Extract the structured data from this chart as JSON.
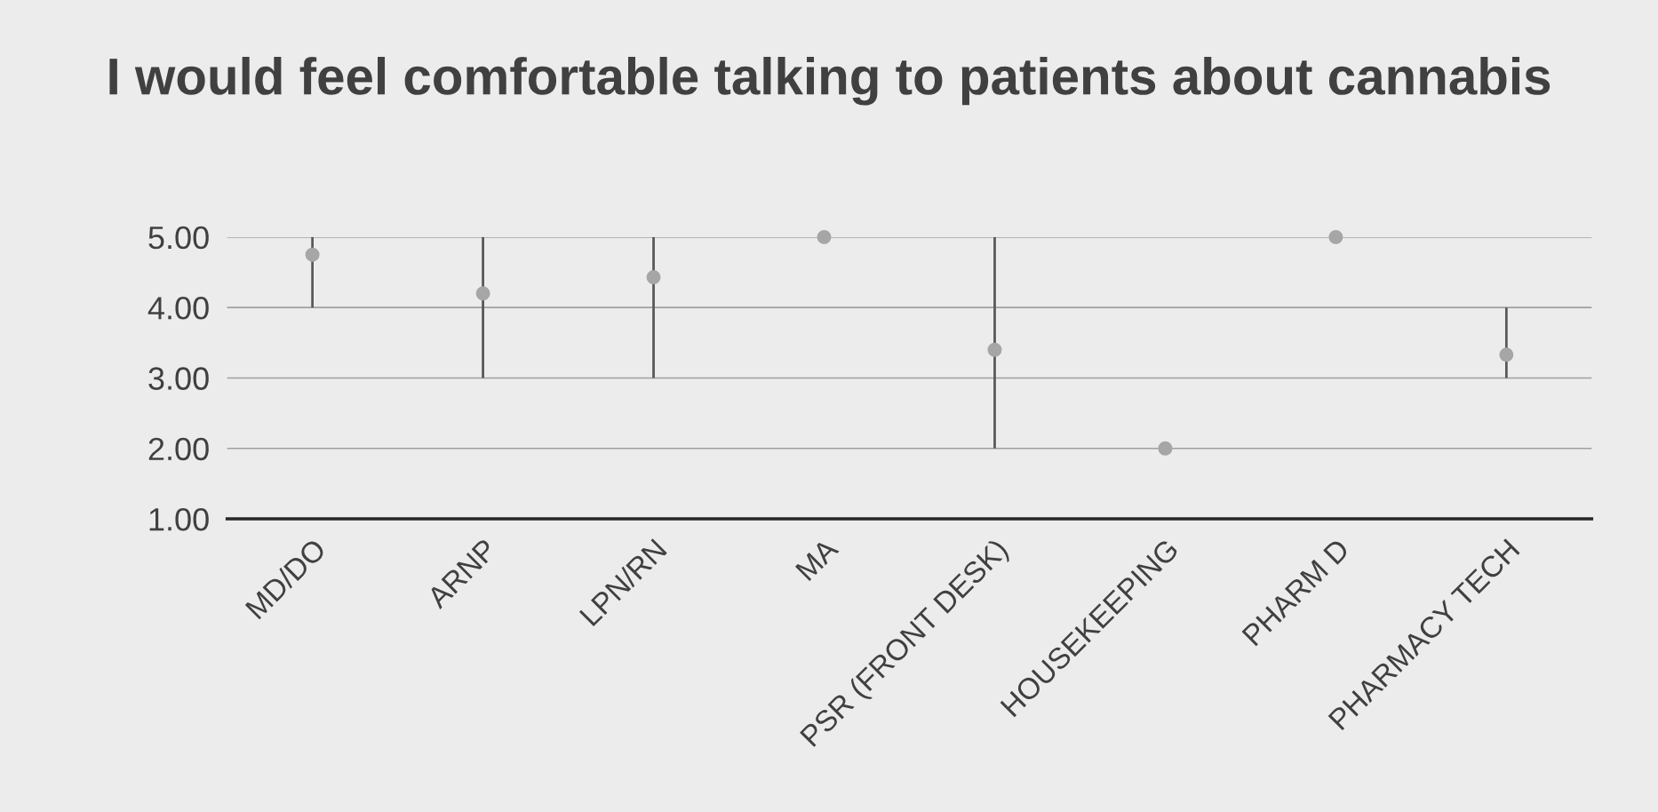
{
  "chart_data": {
    "type": "scatter",
    "title": "I would feel comfortable talking to patients about cannabis",
    "categories": [
      "MD/DO",
      "ARNP",
      "LPN/RN",
      "MA",
      "PSR (FRONT DESK)",
      "HOUSEKEEPING",
      "PHARM D",
      "PHARMACY TECH"
    ],
    "series": [
      {
        "color": "#a6a6a6",
        "values": [
          4.75,
          4.2,
          4.43,
          5,
          3.4,
          2,
          5,
          3.33
        ],
        "errors": [
          [
            4,
            5
          ],
          [
            3,
            5
          ],
          [
            3,
            5
          ],
          null,
          [
            2,
            5
          ],
          null,
          null,
          [
            3,
            4
          ]
        ]
      }
    ],
    "ylim": [
      1,
      5
    ],
    "yticks": [
      {
        "value": 1,
        "label": "1.00"
      },
      {
        "value": 2,
        "label": "2.00"
      },
      {
        "value": 3,
        "label": "3.00"
      },
      {
        "value": 4,
        "label": "4.00"
      },
      {
        "value": 5,
        "label": "5.00"
      }
    ],
    "grid": "y",
    "marker": "circle"
  }
}
